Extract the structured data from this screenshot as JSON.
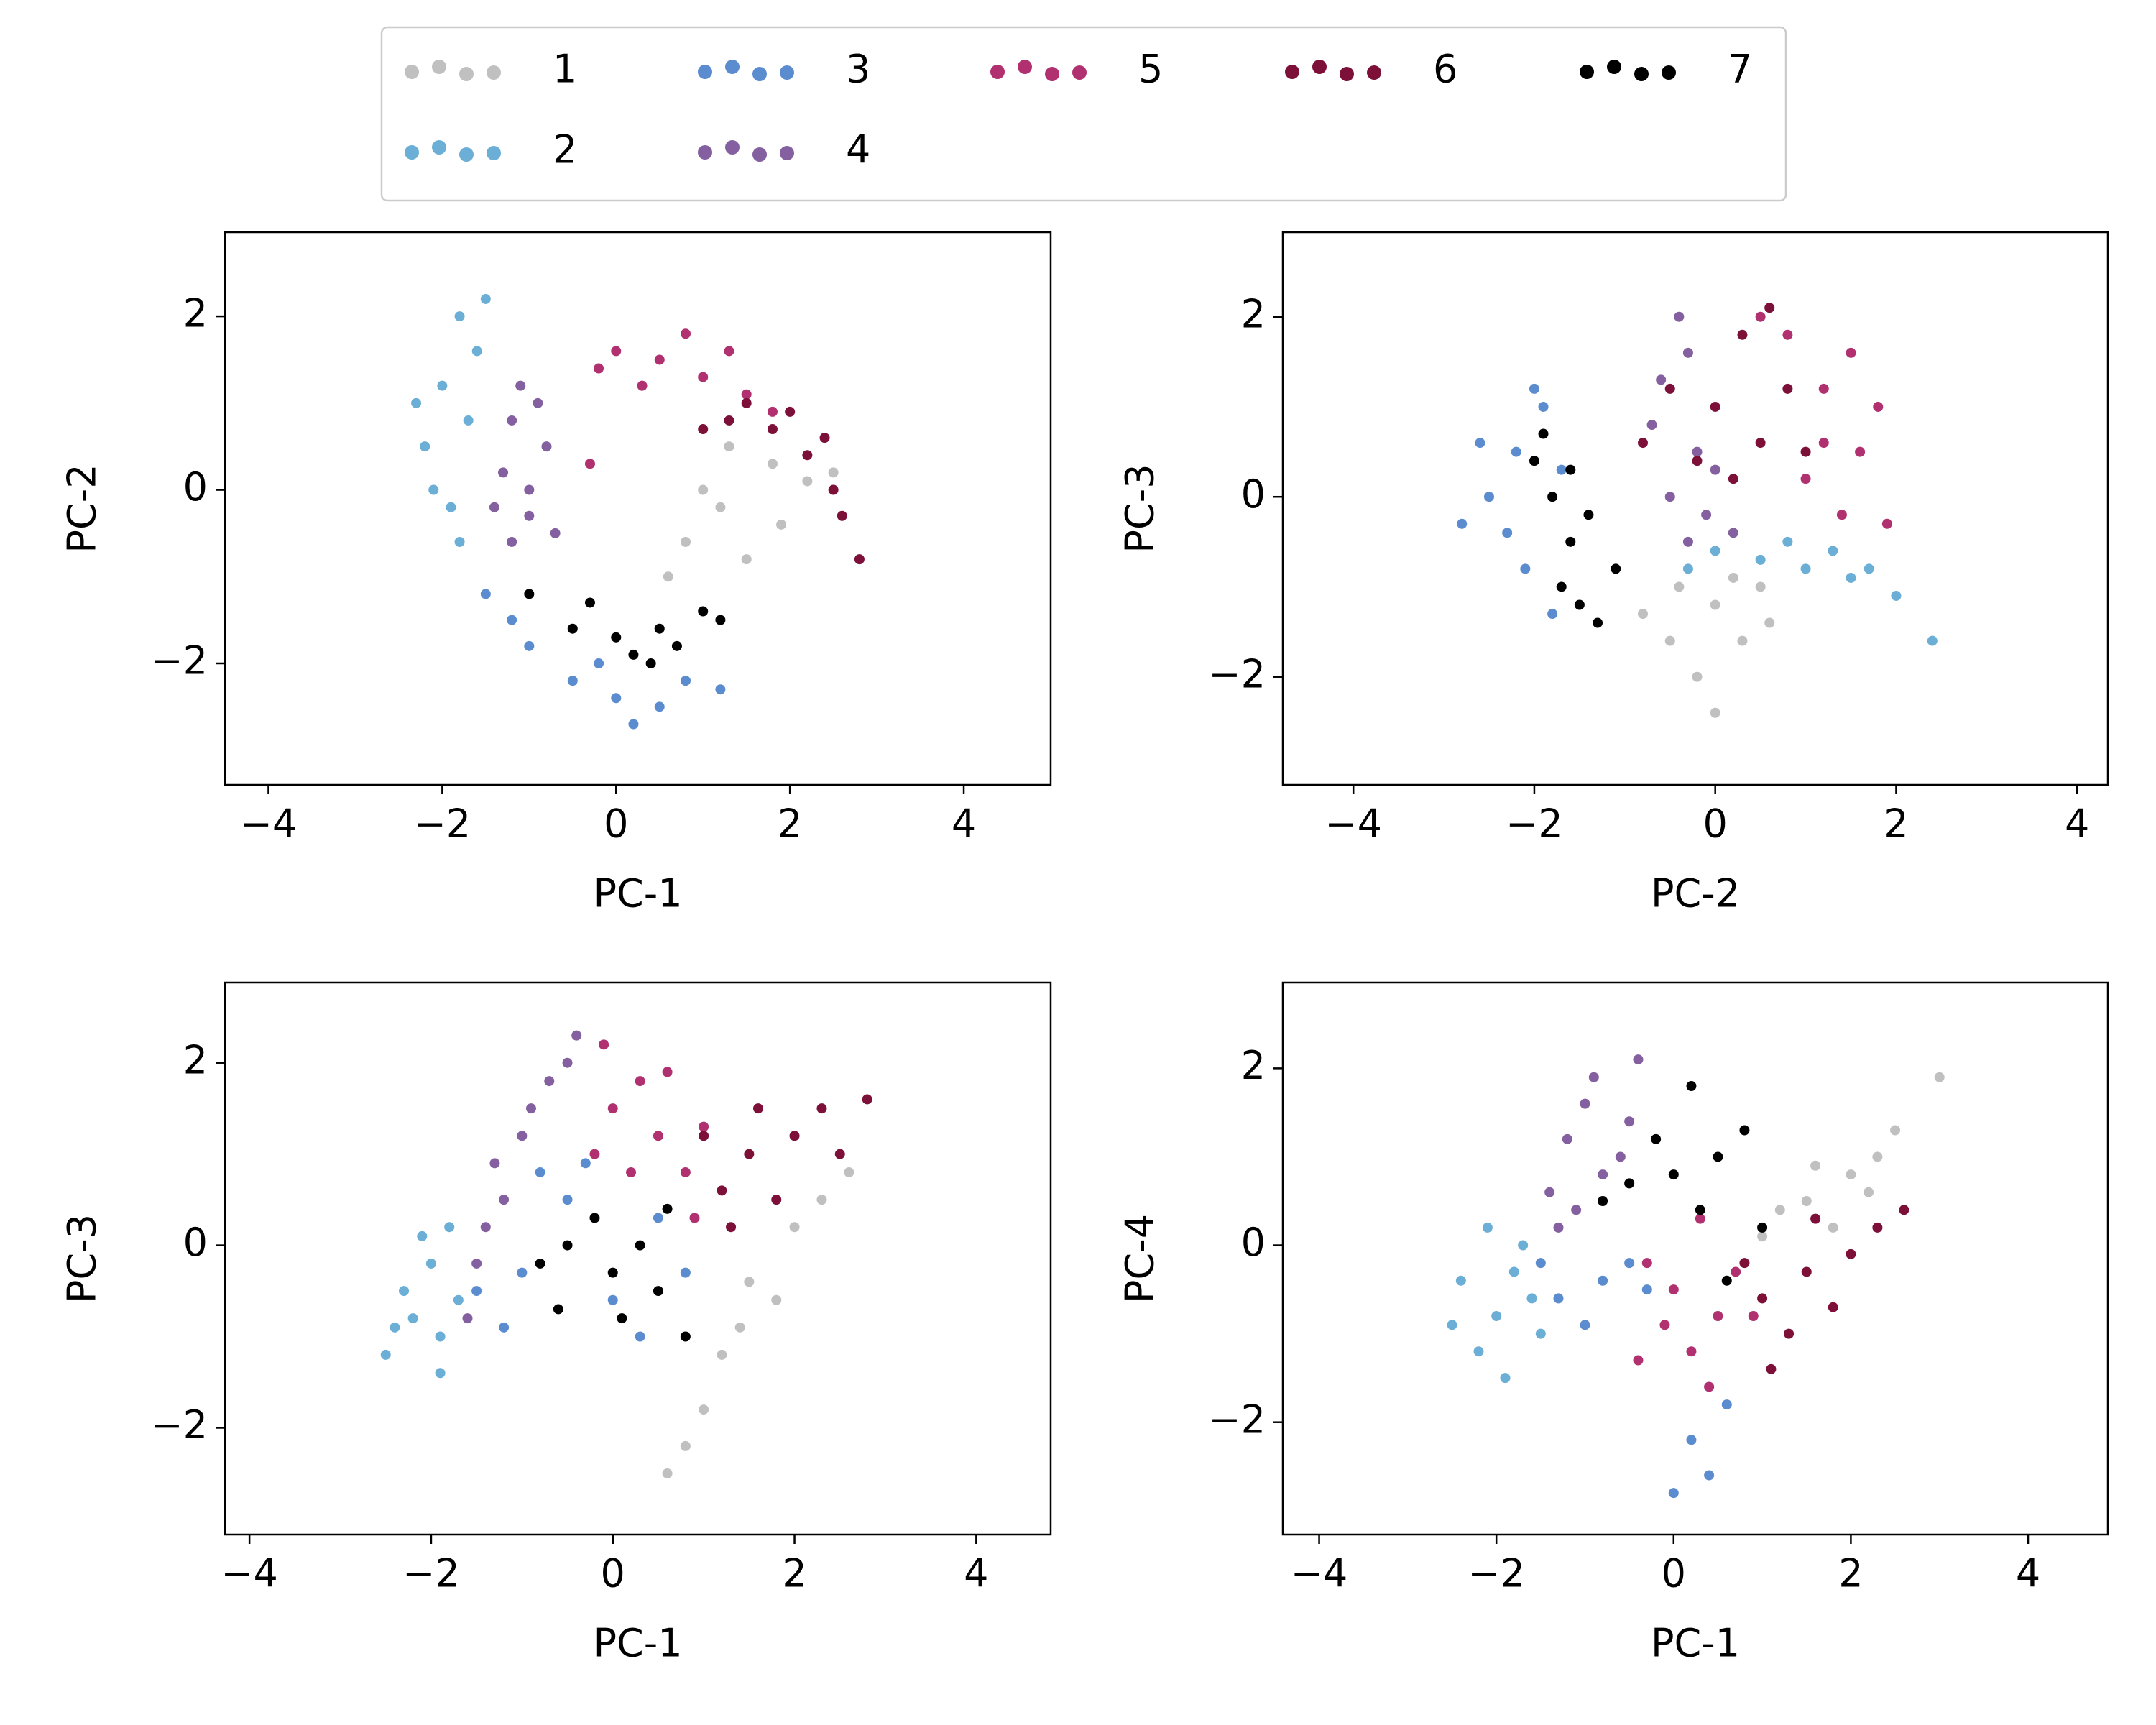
{
  "legend": {
    "loc": "upper center",
    "ncol": 5
  },
  "chart_data": [
    {
      "type": "scatter",
      "xlabel": "PC-1",
      "ylabel": "PC-2",
      "xlim": [
        -4.5,
        5.0
      ],
      "ylim": [
        -3.4,
        2.97
      ],
      "xticks": [
        {
          "value": -4,
          "label": "−4"
        },
        {
          "value": -2,
          "label": "−2"
        },
        0,
        2,
        4
      ],
      "yticks": [
        {
          "value": -2,
          "label": "−2"
        },
        0,
        2
      ],
      "series": [
        {
          "name": "1",
          "color": "#c0c0c0",
          "x": [
            1.2,
            1.8,
            1.5,
            0.8,
            2.2,
            1.3,
            1.0,
            1.9,
            2.5,
            0.6
          ],
          "y": [
            -0.2,
            0.3,
            -0.8,
            -0.6,
            0.1,
            0.5,
            0.0,
            -0.4,
            0.2,
            -1.0
          ]
        },
        {
          "name": "2",
          "color": "#6baed6",
          "x": [
            -1.8,
            -2.0,
            -2.2,
            -1.9,
            -1.6,
            -1.7,
            -2.3,
            -1.5,
            -1.8,
            -2.1
          ],
          "y": [
            2.0,
            1.2,
            0.5,
            -0.2,
            1.6,
            0.8,
            1.0,
            2.2,
            -0.6,
            0.0
          ]
        },
        {
          "name": "3",
          "color": "#5b8ccf",
          "x": [
            -1.5,
            -1.0,
            -0.5,
            0,
            0.5,
            0.8,
            -1.2,
            0.2,
            -0.2,
            1.2
          ],
          "y": [
            -1.2,
            -1.8,
            -2.2,
            -2.4,
            -2.5,
            -2.2,
            -1.5,
            -2.7,
            -2.0,
            -2.3
          ]
        },
        {
          "name": "4",
          "color": "#8560a0",
          "x": [
            -1.2,
            -1.3,
            -1.0,
            -0.8,
            -1.1,
            -1.4,
            -0.7,
            -0.9,
            -1.2,
            -1.0
          ],
          "y": [
            0.8,
            0.2,
            -0.3,
            0.5,
            1.2,
            -0.2,
            -0.5,
            1.0,
            -0.6,
            0.0
          ]
        },
        {
          "name": "5",
          "color": "#b03070",
          "x": [
            0,
            0.5,
            1,
            1.5,
            -0.2,
            0.8,
            1.3,
            0.3,
            1.8,
            -0.3
          ],
          "y": [
            1.6,
            1.5,
            1.3,
            1.1,
            1.4,
            1.8,
            1.6,
            1.2,
            0.9,
            0.3
          ]
        },
        {
          "name": "6",
          "color": "#7d1038",
          "x": [
            1.3,
            1.8,
            2.2,
            2.5,
            1.5,
            2.0,
            2.6,
            1.0,
            2.4,
            2.8
          ],
          "y": [
            0.8,
            0.7,
            0.4,
            0.0,
            1.0,
            0.9,
            -0.3,
            0.7,
            0.6,
            -0.8
          ]
        },
        {
          "name": "7",
          "color": "#000000",
          "x": [
            -0.5,
            0,
            0.5,
            1,
            -1,
            0.2,
            0.7,
            -0.3,
            1.2,
            0.4
          ],
          "y": [
            -1.6,
            -1.7,
            -1.6,
            -1.4,
            -1.2,
            -1.9,
            -1.8,
            -1.3,
            -1.5,
            -2.0
          ]
        }
      ]
    },
    {
      "type": "scatter",
      "xlabel": "PC-2",
      "ylabel": "PC-3",
      "xlim": [
        -4.78,
        4.34
      ],
      "ylim": [
        -3.2,
        2.94
      ],
      "xticks": [
        {
          "value": -4,
          "label": "−4"
        },
        {
          "value": -2,
          "label": "−2"
        },
        0,
        2,
        4
      ],
      "yticks": [
        {
          "value": -2,
          "label": "−2"
        },
        0,
        2
      ],
      "series": [
        {
          "name": "1",
          "color": "#c0c0c0",
          "x": [
            -0.5,
            0,
            0.5,
            -0.2,
            0.3,
            -0.8,
            0.6,
            0,
            -0.4,
            0.2
          ],
          "y": [
            -1.6,
            -1.2,
            -1.0,
            -2.0,
            -1.6,
            -1.3,
            -1.4,
            -2.4,
            -1.0,
            -0.9
          ]
        },
        {
          "name": "2",
          "color": "#6baed6",
          "x": [
            0,
            0.5,
            1,
            1.5,
            2,
            0.8,
            1.3,
            -0.3,
            1.7,
            2.4
          ],
          "y": [
            -0.6,
            -0.7,
            -0.8,
            -0.9,
            -1.1,
            -0.5,
            -0.6,
            -0.8,
            -0.8,
            -1.6
          ]
        },
        {
          "name": "3",
          "color": "#5b8ccf",
          "x": [
            -2.2,
            -2.5,
            -2.1,
            -1.9,
            -2.3,
            -1.8,
            -2.6,
            -1.7,
            -2.0,
            -2.8
          ],
          "y": [
            0.5,
            0,
            -0.8,
            1.0,
            -0.4,
            -1.3,
            0.6,
            0.3,
            1.2,
            -0.3
          ]
        },
        {
          "name": "4",
          "color": "#8560a0",
          "x": [
            -0.5,
            -0.3,
            -0.2,
            -0.6,
            0,
            -0.4,
            -0.1,
            -0.7,
            0.2,
            -0.3
          ],
          "y": [
            0,
            -0.5,
            0.5,
            1.3,
            0.3,
            2.0,
            -0.2,
            0.8,
            -0.4,
            1.6
          ]
        },
        {
          "name": "5",
          "color": "#b03070",
          "x": [
            1.2,
            1.6,
            1.4,
            0.8,
            1.5,
            1.0,
            1.8,
            0.5,
            1.2,
            1.9
          ],
          "y": [
            1.2,
            0.5,
            -0.2,
            1.8,
            1.6,
            0.2,
            1.0,
            2.0,
            0.6,
            -0.3
          ]
        },
        {
          "name": "6",
          "color": "#7d1038",
          "x": [
            0,
            0.5,
            0.8,
            -0.5,
            0.3,
            1.0,
            -0.2,
            0.6,
            -0.8,
            0.2
          ],
          "y": [
            1.0,
            0.6,
            1.2,
            1.2,
            1.8,
            0.5,
            0.4,
            2.1,
            0.6,
            0.2
          ]
        },
        {
          "name": "7",
          "color": "#000000",
          "x": [
            -1.8,
            -1.6,
            -1.5,
            -1.9,
            -1.4,
            -1.7,
            -2.0,
            -1.3,
            -1.6,
            -1.1
          ],
          "y": [
            0,
            -0.5,
            -1.2,
            0.7,
            -0.2,
            -1.0,
            0.4,
            -1.4,
            0.3,
            -0.8
          ]
        }
      ]
    },
    {
      "type": "scatter",
      "xlabel": "PC-1",
      "ylabel": "PC-3",
      "xlim": [
        -4.27,
        4.82
      ],
      "ylim": [
        -3.17,
        2.88
      ],
      "xticks": [
        {
          "value": -4,
          "label": "−4"
        },
        {
          "value": -2,
          "label": "−2"
        },
        0,
        2,
        4
      ],
      "yticks": [
        {
          "value": -2,
          "label": "−2"
        },
        0,
        2
      ],
      "series": [
        {
          "name": "1",
          "color": "#c0c0c0",
          "x": [
            1.5,
            1.2,
            1.0,
            2.0,
            1.8,
            0.8,
            2.3,
            1.4,
            0.6,
            2.6
          ],
          "y": [
            -0.4,
            -1.2,
            -1.8,
            0.2,
            -0.6,
            -2.2,
            0.5,
            -0.9,
            -2.5,
            0.8
          ]
        },
        {
          "name": "2",
          "color": "#6baed6",
          "x": [
            -2.2,
            -2.0,
            -2.3,
            -1.9,
            -1.8,
            -2.5,
            -2.1,
            -1.7,
            -2.4,
            -1.9
          ],
          "y": [
            -0.8,
            -0.2,
            -0.5,
            -1.0,
            0.2,
            -1.2,
            0.1,
            -0.6,
            -0.9,
            -1.4
          ]
        },
        {
          "name": "3",
          "color": "#5b8ccf",
          "x": [
            -0.5,
            -1.0,
            0,
            0.5,
            -0.8,
            -1.2,
            0.3,
            -0.3,
            -1.5,
            0.8
          ],
          "y": [
            0.5,
            -0.3,
            -0.6,
            0.3,
            0.8,
            -0.9,
            -1.0,
            0.9,
            -0.5,
            -0.3
          ]
        },
        {
          "name": "4",
          "color": "#8560a0",
          "x": [
            -1.5,
            -1.2,
            -1.0,
            -0.7,
            -0.4,
            -1.6,
            -1.3,
            -0.9,
            -1.4,
            -0.5
          ],
          "y": [
            -0.2,
            0.5,
            1.2,
            1.8,
            2.3,
            -0.8,
            0.9,
            1.5,
            0.2,
            2.0
          ]
        },
        {
          "name": "5",
          "color": "#b03070",
          "x": [
            0,
            0.5,
            0.8,
            -0.1,
            0.3,
            1.0,
            0.2,
            0.6,
            -0.2,
            0.9
          ],
          "y": [
            1.5,
            1.2,
            0.8,
            2.2,
            1.8,
            1.3,
            0.8,
            1.9,
            1.0,
            0.3
          ]
        },
        {
          "name": "6",
          "color": "#7d1038",
          "x": [
            1.5,
            2.0,
            1.2,
            2.3,
            1.8,
            1.0,
            2.5,
            1.6,
            2.8,
            1.3
          ],
          "y": [
            1.0,
            1.2,
            0.6,
            1.5,
            0.5,
            1.2,
            1.0,
            1.5,
            1.6,
            0.2
          ]
        },
        {
          "name": "7",
          "color": "#000000",
          "x": [
            -0.5,
            0,
            0.5,
            -0.2,
            0.3,
            -0.8,
            0.8,
            0.1,
            0.6,
            -0.6
          ],
          "y": [
            0,
            -0.3,
            -0.5,
            0.3,
            0,
            -0.2,
            -1.0,
            -0.8,
            0.4,
            -0.7
          ]
        }
      ]
    },
    {
      "type": "scatter",
      "xlabel": "PC-1",
      "ylabel": "PC-4",
      "xlim": [
        -4.41,
        4.9
      ],
      "ylim": [
        -3.27,
        2.97
      ],
      "xticks": [
        {
          "value": -4,
          "label": "−4"
        },
        {
          "value": -2,
          "label": "−2"
        },
        0,
        2,
        4
      ],
      "yticks": [
        {
          "value": -2,
          "label": "−2"
        },
        0,
        2
      ],
      "series": [
        {
          "name": "1",
          "color": "#c0c0c0",
          "x": [
            1.5,
            2.0,
            1.8,
            2.3,
            1.2,
            2.5,
            1.6,
            1.0,
            2.2,
            3.0
          ],
          "y": [
            0.5,
            0.8,
            0.2,
            1.0,
            0.4,
            1.3,
            0.9,
            0.1,
            0.6,
            1.9
          ]
        },
        {
          "name": "2",
          "color": "#6baed6",
          "x": [
            -2.0,
            -1.8,
            -2.2,
            -1.6,
            -2.4,
            -1.9,
            -2.1,
            -1.5,
            -2.5,
            -1.7
          ],
          "y": [
            -0.8,
            -0.3,
            -1.2,
            -0.6,
            -0.4,
            -1.5,
            0.2,
            -1.0,
            -0.9,
            0.0
          ]
        },
        {
          "name": "3",
          "color": "#5b8ccf",
          "x": [
            -1.3,
            -0.8,
            -1.0,
            -0.5,
            0.2,
            0.4,
            -1.5,
            0.6,
            -0.3,
            0.0
          ],
          "y": [
            -0.6,
            -0.4,
            -0.9,
            -0.2,
            -2.2,
            -2.6,
            -0.2,
            -1.8,
            -0.5,
            -2.8
          ]
        },
        {
          "name": "4",
          "color": "#8560a0",
          "x": [
            -1.2,
            -0.8,
            -1.0,
            -0.6,
            -1.4,
            -0.9,
            -1.3,
            -0.5,
            -1.1,
            -0.4
          ],
          "y": [
            1.2,
            0.8,
            1.6,
            1.0,
            0.6,
            1.9,
            0.2,
            1.4,
            0.4,
            2.1
          ]
        },
        {
          "name": "5",
          "color": "#b03070",
          "x": [
            0,
            0.5,
            0.2,
            -0.3,
            0.7,
            0.4,
            -0.1,
            0.9,
            0.3,
            -0.4
          ],
          "y": [
            -0.5,
            -0.8,
            -1.2,
            -0.2,
            -0.3,
            -1.6,
            -0.9,
            -0.8,
            0.3,
            -1.3
          ]
        },
        {
          "name": "6",
          "color": "#7d1038",
          "x": [
            1.5,
            1.0,
            2.0,
            1.3,
            1.8,
            2.3,
            0.8,
            1.6,
            2.6,
            1.1
          ],
          "y": [
            -0.3,
            -0.6,
            -0.1,
            -1.0,
            -0.7,
            0.2,
            -0.2,
            0.3,
            0.4,
            -1.4
          ]
        },
        {
          "name": "7",
          "color": "#000000",
          "x": [
            0,
            0.5,
            -0.5,
            0.3,
            0.8,
            -0.2,
            1.0,
            0.6,
            -0.8,
            0.2
          ],
          "y": [
            0.8,
            1.0,
            0.7,
            0.4,
            1.3,
            1.2,
            0.2,
            -0.4,
            0.5,
            1.8
          ]
        }
      ]
    }
  ]
}
